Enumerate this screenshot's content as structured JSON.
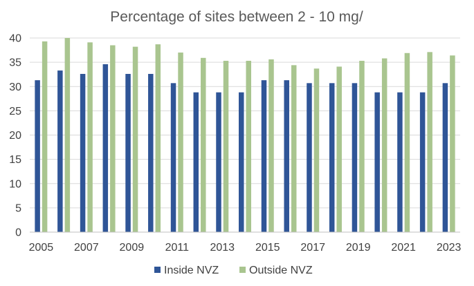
{
  "chart_data": {
    "type": "bar",
    "title": "Percentage of sites between 2 - 10 mg/",
    "xlabel": "",
    "ylabel": "",
    "ylim": [
      0,
      40
    ],
    "yticks": [
      0,
      5,
      10,
      15,
      20,
      25,
      30,
      35,
      40
    ],
    "categories": [
      "2005",
      "2006",
      "2007",
      "2008",
      "2009",
      "2010",
      "2011",
      "2012",
      "2013",
      "2014",
      "2015",
      "2016",
      "2017",
      "2018",
      "2019",
      "2020",
      "2021",
      "2022",
      "2023"
    ],
    "x_tick_labels": [
      "2005",
      "",
      "2007",
      "",
      "2009",
      "",
      "2011",
      "",
      "2013",
      "",
      "2015",
      "",
      "2017",
      "",
      "2019",
      "",
      "2021",
      "",
      "2023"
    ],
    "series": [
      {
        "name": "Inside NVZ",
        "color": "#2f5597",
        "values": [
          31.3,
          33.3,
          32.6,
          34.6,
          32.6,
          32.6,
          30.7,
          28.8,
          28.8,
          28.8,
          31.3,
          31.3,
          30.7,
          30.7,
          30.7,
          28.8,
          28.8,
          28.8,
          30.7
        ]
      },
      {
        "name": "Outside NVZ",
        "color": "#a9c58f",
        "values": [
          39.3,
          40.0,
          39.1,
          38.5,
          38.2,
          38.7,
          37.0,
          35.9,
          35.3,
          35.3,
          35.6,
          34.4,
          33.7,
          34.1,
          35.3,
          35.8,
          36.9,
          37.1,
          36.4
        ]
      }
    ],
    "legend_position": "bottom",
    "grid": true
  }
}
